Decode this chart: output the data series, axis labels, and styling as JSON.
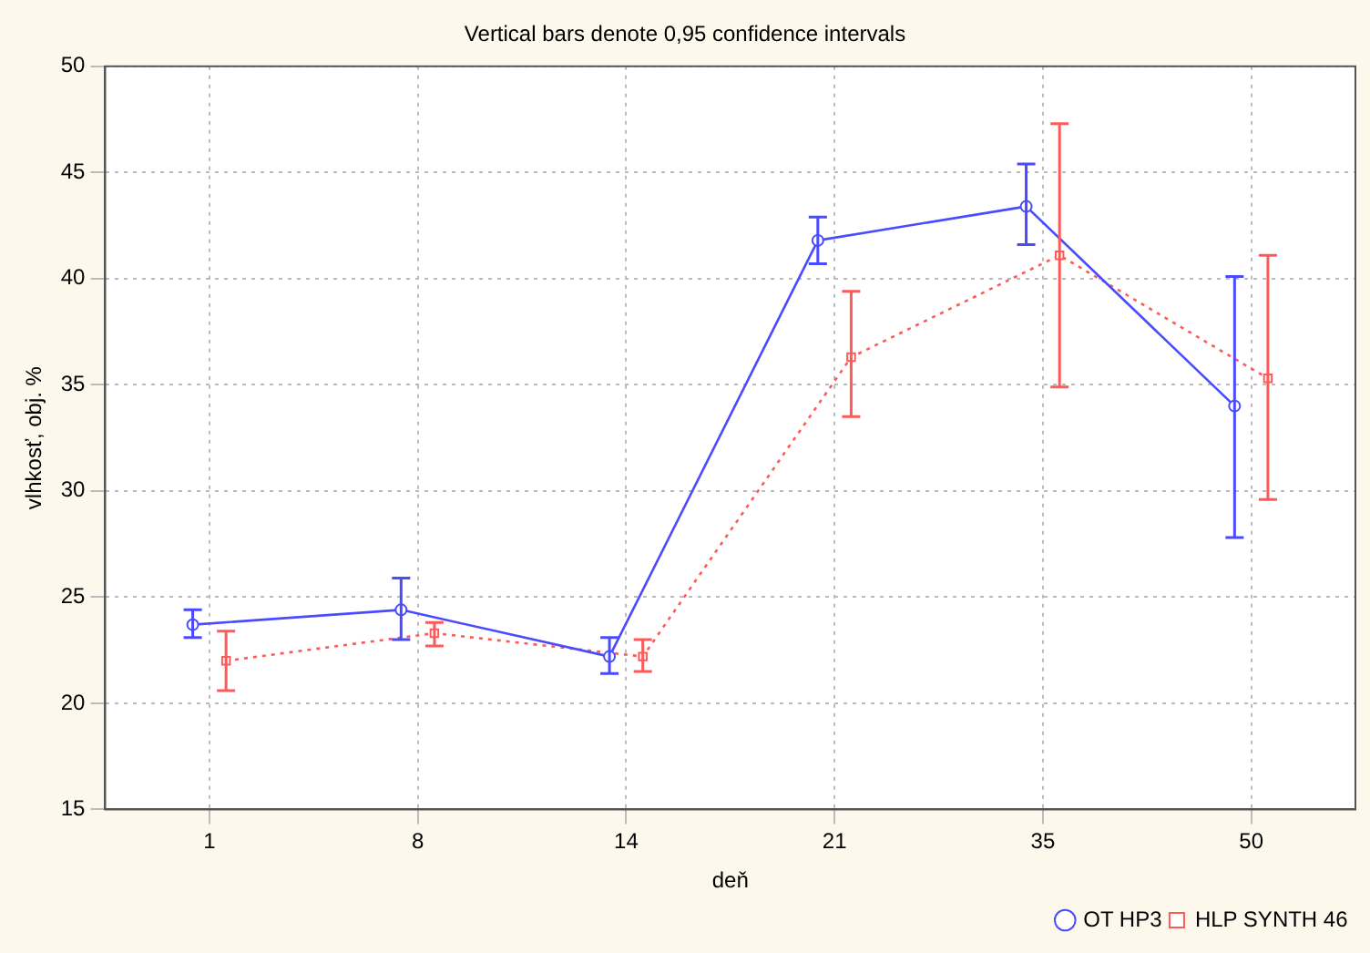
{
  "chart_data": {
    "type": "line",
    "title": "Vertical bars denote 0,95 confidence intervals",
    "xlabel": "deň",
    "ylabel": "vlhkosť, obj. %",
    "categories": [
      "1",
      "8",
      "14",
      "21",
      "35",
      "50"
    ],
    "series": [
      {
        "name": "OT HP3",
        "color": "#4a4aff",
        "marker": "circle",
        "line_style": "solid",
        "values": [
          23.7,
          24.4,
          22.2,
          41.8,
          43.4,
          34.0
        ],
        "errors": [
          [
            23.1,
            24.4
          ],
          [
            23.0,
            25.9
          ],
          [
            21.4,
            23.1
          ],
          [
            40.7,
            42.9
          ],
          [
            41.6,
            45.4
          ],
          [
            27.8,
            40.1
          ]
        ]
      },
      {
        "name": "HLP SYNTH 46",
        "color": "#ff5a5a",
        "marker": "square",
        "line_style": "dotted",
        "values": [
          22.0,
          23.3,
          22.2,
          36.3,
          41.1,
          35.3
        ],
        "errors": [
          [
            20.6,
            23.4
          ],
          [
            22.7,
            23.8
          ],
          [
            21.5,
            23.0
          ],
          [
            33.5,
            39.4
          ],
          [
            34.9,
            47.3
          ],
          [
            29.6,
            41.1
          ]
        ]
      }
    ],
    "ylim": [
      15,
      50
    ],
    "yticks": [
      15,
      20,
      25,
      30,
      35,
      40,
      45,
      50
    ],
    "grid": true,
    "legend": "bottom right"
  }
}
